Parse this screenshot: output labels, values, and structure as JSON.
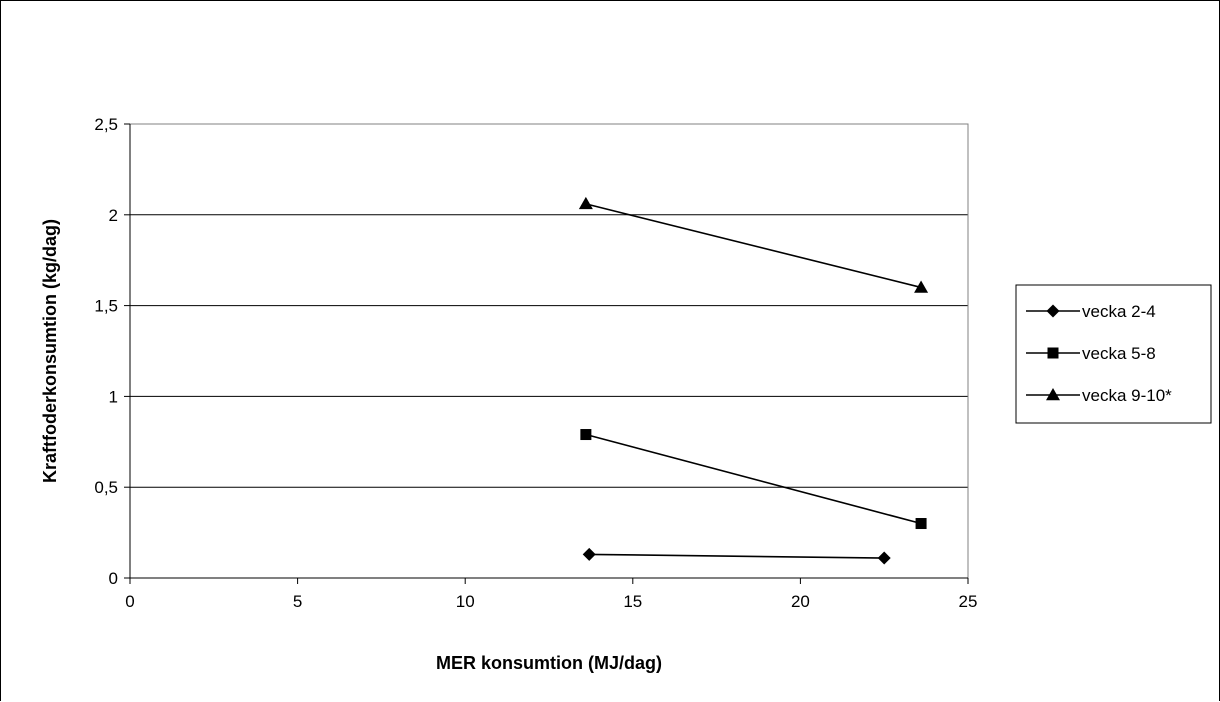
{
  "chart_data": {
    "type": "line",
    "title": "",
    "xlabel": "MER konsumtion (MJ/dag)",
    "ylabel": "Kraftfoderkonsumtion (kg/dag)",
    "xlim": [
      0,
      25
    ],
    "ylim": [
      0,
      2.5
    ],
    "xticks": [
      0,
      5,
      10,
      15,
      20,
      25
    ],
    "yticks": [
      0,
      0.5,
      1,
      1.5,
      2,
      2.5
    ],
    "xtick_labels": [
      "0",
      "5",
      "10",
      "15",
      "20",
      "25"
    ],
    "ytick_labels": [
      "0",
      "0,5",
      "1",
      "1,5",
      "2",
      "2,5"
    ],
    "grid": "horizontal",
    "legend_position": "right",
    "series": [
      {
        "name": "vecka 2-4",
        "marker": "diamond",
        "x": [
          13.7,
          22.5
        ],
        "y": [
          0.13,
          0.11
        ]
      },
      {
        "name": "vecka 5-8",
        "marker": "square",
        "x": [
          13.6,
          23.6
        ],
        "y": [
          0.79,
          0.3
        ]
      },
      {
        "name": "vecka 9-10*",
        "marker": "triangle",
        "x": [
          13.6,
          23.6
        ],
        "y": [
          2.06,
          1.6
        ]
      }
    ]
  }
}
